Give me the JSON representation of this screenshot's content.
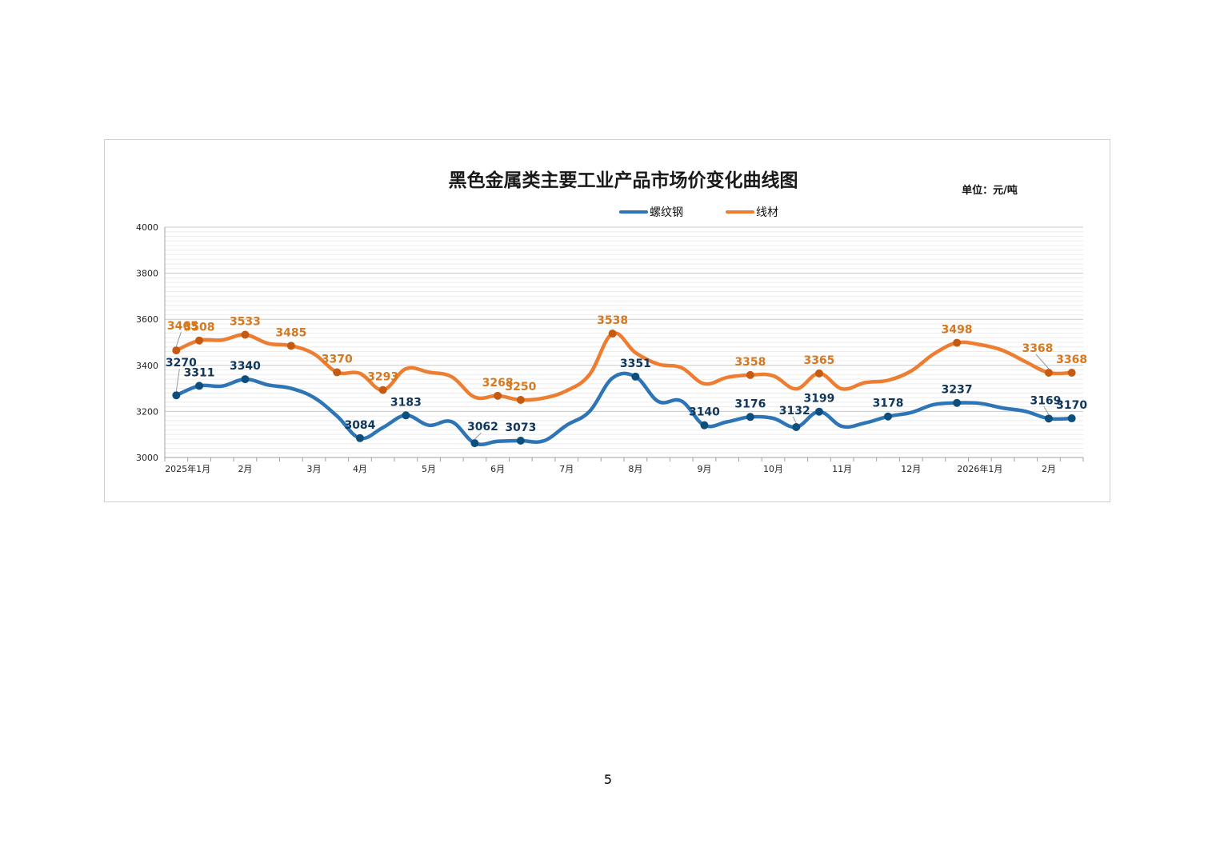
{
  "page": {
    "number": "5"
  },
  "chart_data": {
    "type": "line",
    "title": "黑色金属类主要工业产品市场价变化曲线图",
    "unit_label": "单位：元/吨",
    "ylim": [
      3000,
      4000
    ],
    "y_ticks": [
      "3000",
      "3200",
      "3400",
      "3600",
      "3800",
      "4000"
    ],
    "x_tick_labels": [
      {
        "label": "2025年1月",
        "x": 2
      },
      {
        "label": "2月",
        "x": 7
      },
      {
        "label": "3月",
        "x": 13
      },
      {
        "label": "4月",
        "x": 17
      },
      {
        "label": "5月",
        "x": 23
      },
      {
        "label": "6月",
        "x": 29
      },
      {
        "label": "7月",
        "x": 35
      },
      {
        "label": "8月",
        "x": 41
      },
      {
        "label": "9月",
        "x": 47
      },
      {
        "label": "10月",
        "x": 53
      },
      {
        "label": "11月",
        "x": 59
      },
      {
        "label": "12月",
        "x": 65
      },
      {
        "label": "2026年1月",
        "x": 71
      },
      {
        "label": "2月",
        "x": 77
      }
    ],
    "x_count": 80,
    "grid": true,
    "legend_position": "top",
    "series": [
      {
        "name": "螺纹钢",
        "color": "#2e75b6",
        "marker_color": "#0d4f7c",
        "label_color": "#10365a",
        "points": [
          {
            "x": 1,
            "y": 3270,
            "label": "3270"
          },
          {
            "x": 3,
            "y": 3311,
            "label": "3311"
          },
          {
            "x": 5,
            "y": 3310
          },
          {
            "x": 7,
            "y": 3340,
            "label": "3340"
          },
          {
            "x": 9,
            "y": 3315
          },
          {
            "x": 11,
            "y": 3300
          },
          {
            "x": 13,
            "y": 3260
          },
          {
            "x": 15,
            "y": 3180
          },
          {
            "x": 17,
            "y": 3084,
            "label": "3084"
          },
          {
            "x": 19,
            "y": 3130
          },
          {
            "x": 21,
            "y": 3183,
            "label": "3183"
          },
          {
            "x": 23,
            "y": 3140
          },
          {
            "x": 25,
            "y": 3155
          },
          {
            "x": 27,
            "y": 3062,
            "label": "3062"
          },
          {
            "x": 29,
            "y": 3070
          },
          {
            "x": 31,
            "y": 3073,
            "label": "3073"
          },
          {
            "x": 33,
            "y": 3072
          },
          {
            "x": 35,
            "y": 3140
          },
          {
            "x": 37,
            "y": 3200
          },
          {
            "x": 39,
            "y": 3345
          },
          {
            "x": 41,
            "y": 3351,
            "label": "3351"
          },
          {
            "x": 43,
            "y": 3243
          },
          {
            "x": 45,
            "y": 3245
          },
          {
            "x": 47,
            "y": 3140,
            "label": "3140"
          },
          {
            "x": 49,
            "y": 3155
          },
          {
            "x": 51,
            "y": 3176,
            "label": "3176"
          },
          {
            "x": 53,
            "y": 3170
          },
          {
            "x": 55,
            "y": 3132,
            "label": "3132"
          },
          {
            "x": 57,
            "y": 3199,
            "label": "3199"
          },
          {
            "x": 59,
            "y": 3135
          },
          {
            "x": 61,
            "y": 3150
          },
          {
            "x": 63,
            "y": 3178,
            "label": "3178"
          },
          {
            "x": 65,
            "y": 3195
          },
          {
            "x": 67,
            "y": 3230
          },
          {
            "x": 69,
            "y": 3237,
            "label": "3237"
          },
          {
            "x": 71,
            "y": 3235
          },
          {
            "x": 73,
            "y": 3215
          },
          {
            "x": 75,
            "y": 3200
          },
          {
            "x": 77,
            "y": 3169,
            "label": "3169"
          },
          {
            "x": 79,
            "y": 3170,
            "label": "3170"
          }
        ]
      },
      {
        "name": "线材",
        "color": "#ed7d31",
        "marker_color": "#c55a11",
        "label_color": "#d6781f",
        "points": [
          {
            "x": 1,
            "y": 3465,
            "label": "3465"
          },
          {
            "x": 3,
            "y": 3508,
            "label": "3508"
          },
          {
            "x": 5,
            "y": 3510
          },
          {
            "x": 7,
            "y": 3533,
            "label": "3533"
          },
          {
            "x": 9,
            "y": 3495
          },
          {
            "x": 11,
            "y": 3485,
            "label": "3485"
          },
          {
            "x": 13,
            "y": 3450
          },
          {
            "x": 15,
            "y": 3370,
            "label": "3370"
          },
          {
            "x": 17,
            "y": 3365
          },
          {
            "x": 19,
            "y": 3293,
            "label": "3293"
          },
          {
            "x": 21,
            "y": 3385
          },
          {
            "x": 23,
            "y": 3370
          },
          {
            "x": 25,
            "y": 3350
          },
          {
            "x": 27,
            "y": 3262
          },
          {
            "x": 29,
            "y": 3268,
            "label": "3268"
          },
          {
            "x": 31,
            "y": 3250,
            "label": "3250"
          },
          {
            "x": 33,
            "y": 3258
          },
          {
            "x": 35,
            "y": 3290
          },
          {
            "x": 37,
            "y": 3360
          },
          {
            "x": 39,
            "y": 3538,
            "label": "3538"
          },
          {
            "x": 41,
            "y": 3455
          },
          {
            "x": 43,
            "y": 3405
          },
          {
            "x": 45,
            "y": 3390
          },
          {
            "x": 47,
            "y": 3320
          },
          {
            "x": 49,
            "y": 3348
          },
          {
            "x": 51,
            "y": 3358,
            "label": "3358"
          },
          {
            "x": 53,
            "y": 3355
          },
          {
            "x": 55,
            "y": 3298
          },
          {
            "x": 57,
            "y": 3365,
            "label": "3365"
          },
          {
            "x": 59,
            "y": 3298
          },
          {
            "x": 61,
            "y": 3325
          },
          {
            "x": 63,
            "y": 3335
          },
          {
            "x": 65,
            "y": 3375
          },
          {
            "x": 67,
            "y": 3450
          },
          {
            "x": 69,
            "y": 3498,
            "label": "3498"
          },
          {
            "x": 71,
            "y": 3490
          },
          {
            "x": 73,
            "y": 3465
          },
          {
            "x": 75,
            "y": 3415
          },
          {
            "x": 77,
            "y": 3368,
            "label": "3368"
          },
          {
            "x": 79,
            "y": 3368,
            "label": "3368"
          }
        ]
      }
    ]
  }
}
